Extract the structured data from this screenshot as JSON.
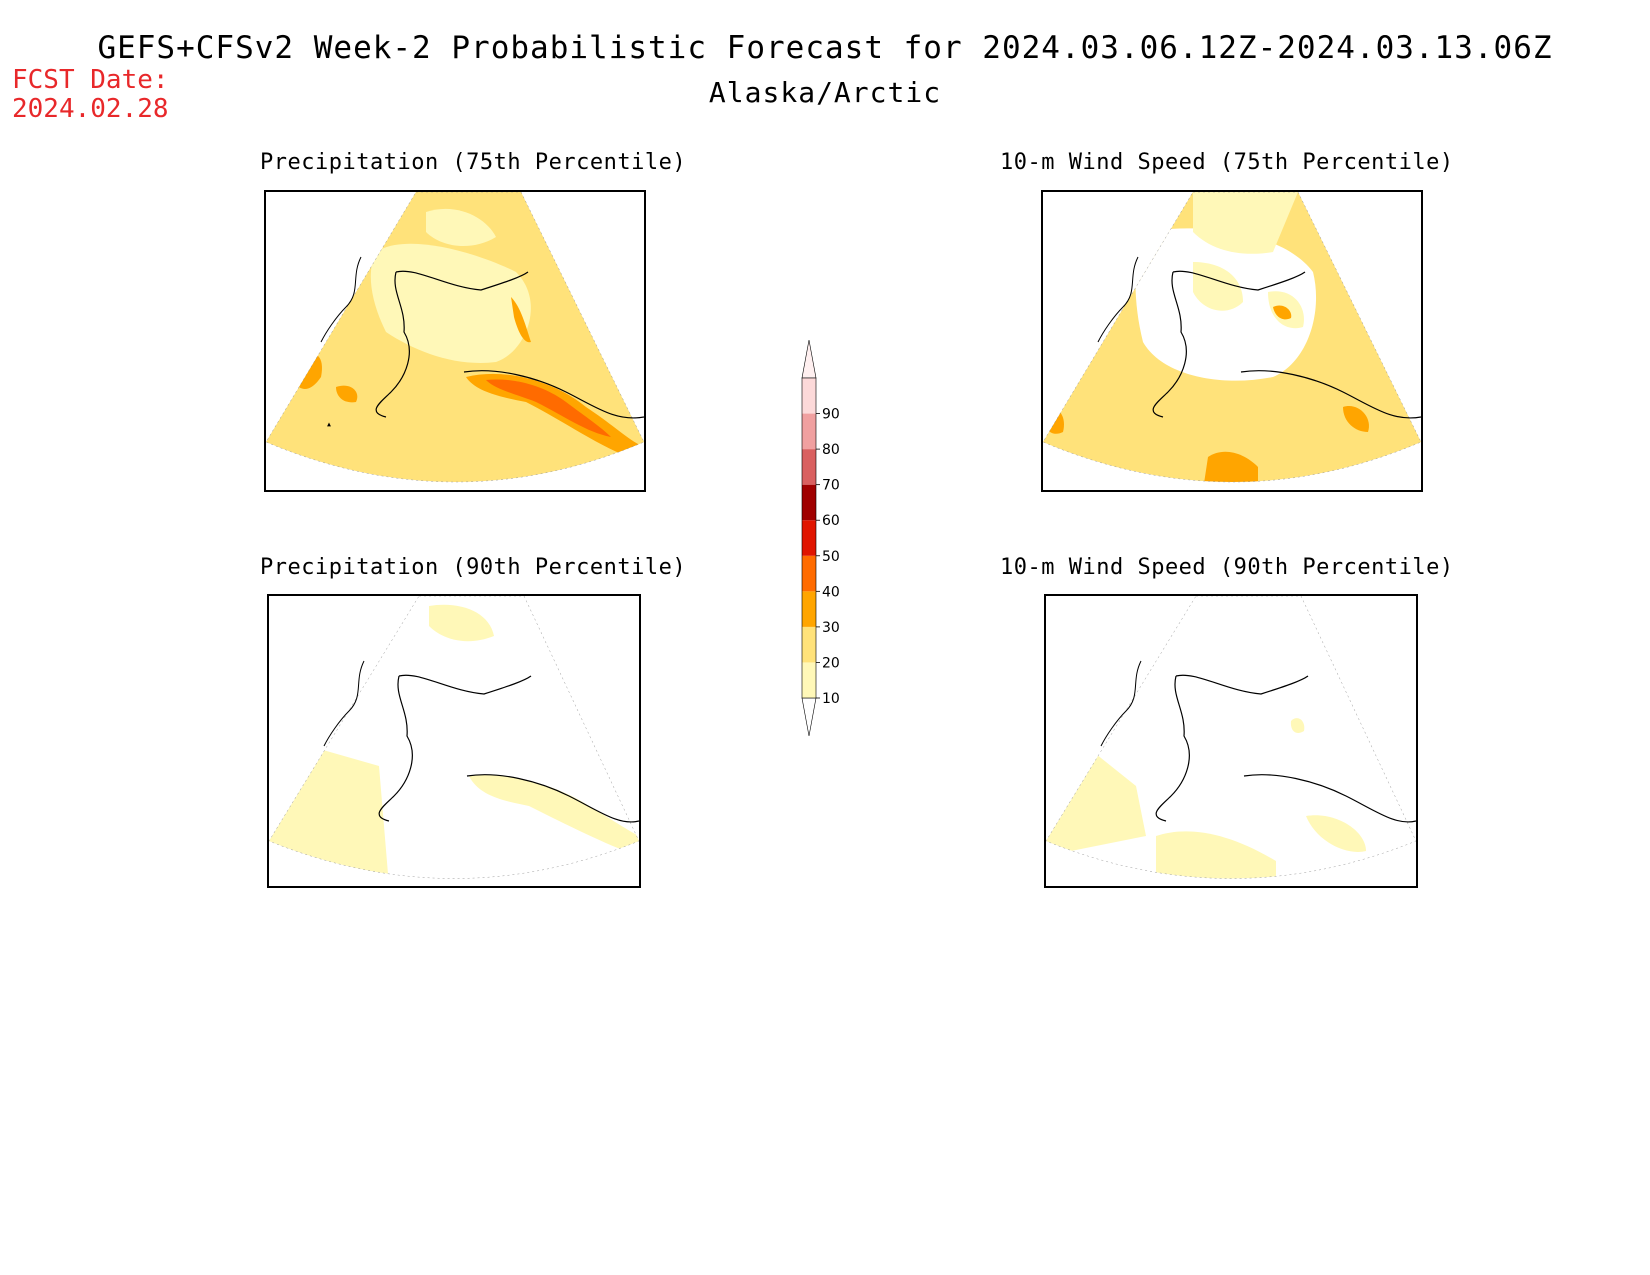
{
  "header": {
    "title": "GEFS+CFSv2 Week-2 Probabilistic Forecast for 2024.03.06.12Z-2024.03.13.06Z",
    "region": "Alaska/Arctic",
    "fcst_label": "FCST Date:",
    "fcst_date": "2024.02.28"
  },
  "panels": [
    {
      "id": "precip-75",
      "title": "Precipitation (75th Percentile)"
    },
    {
      "id": "wind-75",
      "title": "10-m Wind Speed (75th Percentile)"
    },
    {
      "id": "precip-90",
      "title": "Precipitation (90th Percentile)"
    },
    {
      "id": "wind-90",
      "title": "10-m Wind Speed (90th Percentile)"
    }
  ],
  "colorbar": {
    "levels": [
      "10",
      "20",
      "30",
      "40",
      "50",
      "60",
      "70",
      "80",
      "90"
    ],
    "colors": [
      "#fff8b8",
      "#ffe27a",
      "#ffa500",
      "#ff6b00",
      "#e01500",
      "#a00000",
      "#d96060",
      "#f0a0a0",
      "#fcd9d9"
    ]
  },
  "colors": {
    "c10": "#fff8b8",
    "c20": "#ffe27a",
    "c30": "#ffa500",
    "c40": "#ff6b00",
    "title_red": "#e8282a"
  }
}
